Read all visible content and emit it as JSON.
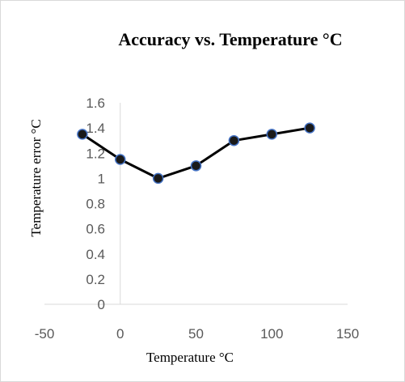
{
  "chart_data": {
    "type": "line",
    "title": "Accuracy vs. Temperature °C",
    "xlabel": "Temperature °C",
    "ylabel": "Temperature error °C",
    "xlim": [
      -50,
      150
    ],
    "ylim": [
      0,
      1.6
    ],
    "xticks": [
      -50,
      0,
      50,
      100,
      150
    ],
    "xtick_labels": [
      "-50",
      "0",
      "50",
      "100",
      "150"
    ],
    "yticks": [
      0,
      0.2,
      0.4,
      0.6,
      0.8,
      1,
      1.2,
      1.4,
      1.6
    ],
    "ytick_labels": [
      "0",
      "0.2",
      "0.4",
      "0.6",
      "0.8",
      "1",
      "1.2",
      "1.4",
      "1.6"
    ],
    "grid": false,
    "legend": "none",
    "series": [
      {
        "x": [
          -25,
          0,
          25,
          50,
          75,
          100,
          125
        ],
        "y": [
          1.35,
          1.15,
          1.0,
          1.1,
          1.3,
          1.35,
          1.4
        ],
        "line_color": "#000000",
        "marker_fill": "#1a1a1a",
        "marker_edge": "#4472c4"
      }
    ]
  }
}
